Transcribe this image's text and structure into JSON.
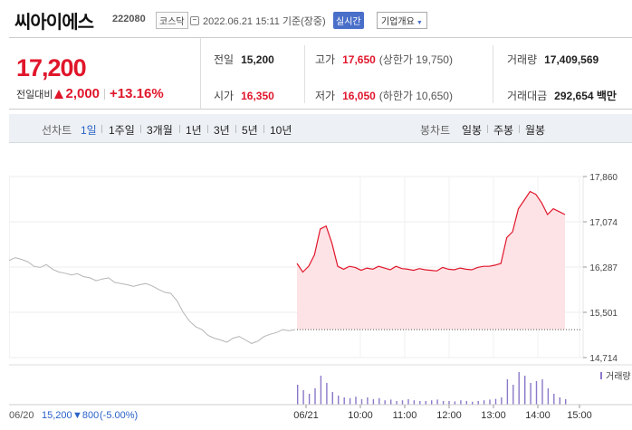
{
  "header": {
    "name": "씨아이에스",
    "code": "222080",
    "market": "코스닥",
    "asof": "2022.06.21 15:11 기준(장중)",
    "realtime": "실시간",
    "company_info": "기업개요"
  },
  "price": {
    "current": "17,200",
    "change_label": "전일대비",
    "change": "2,000",
    "change_pct": "+13.16%"
  },
  "stats": {
    "prev_label": "전일",
    "prev": "15,200",
    "high_label": "고가",
    "high": "17,650",
    "upper_limit": "(상한가 19,750)",
    "volume_label": "거래량",
    "volume": "17,409,569",
    "open_label": "시가",
    "open": "16,350",
    "low_label": "저가",
    "low": "16,050",
    "lower_limit": "(하한가 10,650)",
    "amount_label": "거래대금",
    "amount": "292,654 백만"
  },
  "toolbar": {
    "line_label": "선차트",
    "line_periods": [
      "1일",
      "1주일",
      "3개월",
      "1년",
      "3년",
      "5년",
      "10년"
    ],
    "candle_label": "봉차트",
    "candle_periods": [
      "일봉",
      "주봉",
      "월봉"
    ]
  },
  "colors": {
    "up": "#e0162b",
    "down": "#2a62c7",
    "accent": "#4a6fc9"
  },
  "chart_data": {
    "type": "line",
    "y_ticks": [
      "17,860",
      "17,074",
      "16,287",
      "15,501",
      "14,714"
    ],
    "ylim": [
      14714,
      17860
    ],
    "x_ticks": [
      "06/21",
      "10:00",
      "11:00",
      "12:00",
      "13:00",
      "14:00",
      "15:00"
    ],
    "prev_close": 15200,
    "volume_label": "거래량",
    "footer": {
      "date": "06/20",
      "close": "15,200",
      "change": "▼800",
      "pct": "(-5.00%)"
    },
    "prev_day_series": [
      16400,
      16450,
      16420,
      16380,
      16300,
      16280,
      16330,
      16250,
      16200,
      16180,
      16150,
      16170,
      16120,
      16100,
      16050,
      16080,
      16100,
      16020,
      16000,
      15980,
      15950,
      15980,
      16000,
      15960,
      15900,
      15850,
      15830,
      15700,
      15500,
      15350,
      15250,
      15200,
      15100,
      15050,
      15020,
      14980,
      15050,
      15080,
      15020,
      14960,
      15000,
      15080,
      15120,
      15150,
      15200,
      15180,
      15200
    ],
    "today_series": [
      16350,
      16200,
      16300,
      16500,
      16950,
      17000,
      16700,
      16300,
      16250,
      16300,
      16280,
      16230,
      16270,
      16250,
      16300,
      16270,
      16240,
      16300,
      16260,
      16250,
      16230,
      16260,
      16240,
      16230,
      16220,
      16280,
      16250,
      16240,
      16270,
      16250,
      16240,
      16280,
      16300,
      16300,
      16320,
      16350,
      16800,
      16900,
      17300,
      17450,
      17600,
      17550,
      17400,
      17200,
      17300,
      17250,
      17200
    ],
    "today_volume": [
      55,
      40,
      30,
      45,
      80,
      60,
      35,
      25,
      20,
      18,
      22,
      15,
      20,
      15,
      18,
      12,
      14,
      10,
      12,
      15,
      12,
      10,
      10,
      12,
      14,
      10,
      10,
      9,
      12,
      10,
      8,
      10,
      12,
      14,
      16,
      20,
      70,
      55,
      90,
      80,
      60,
      65,
      70,
      45,
      30,
      20,
      15
    ]
  }
}
